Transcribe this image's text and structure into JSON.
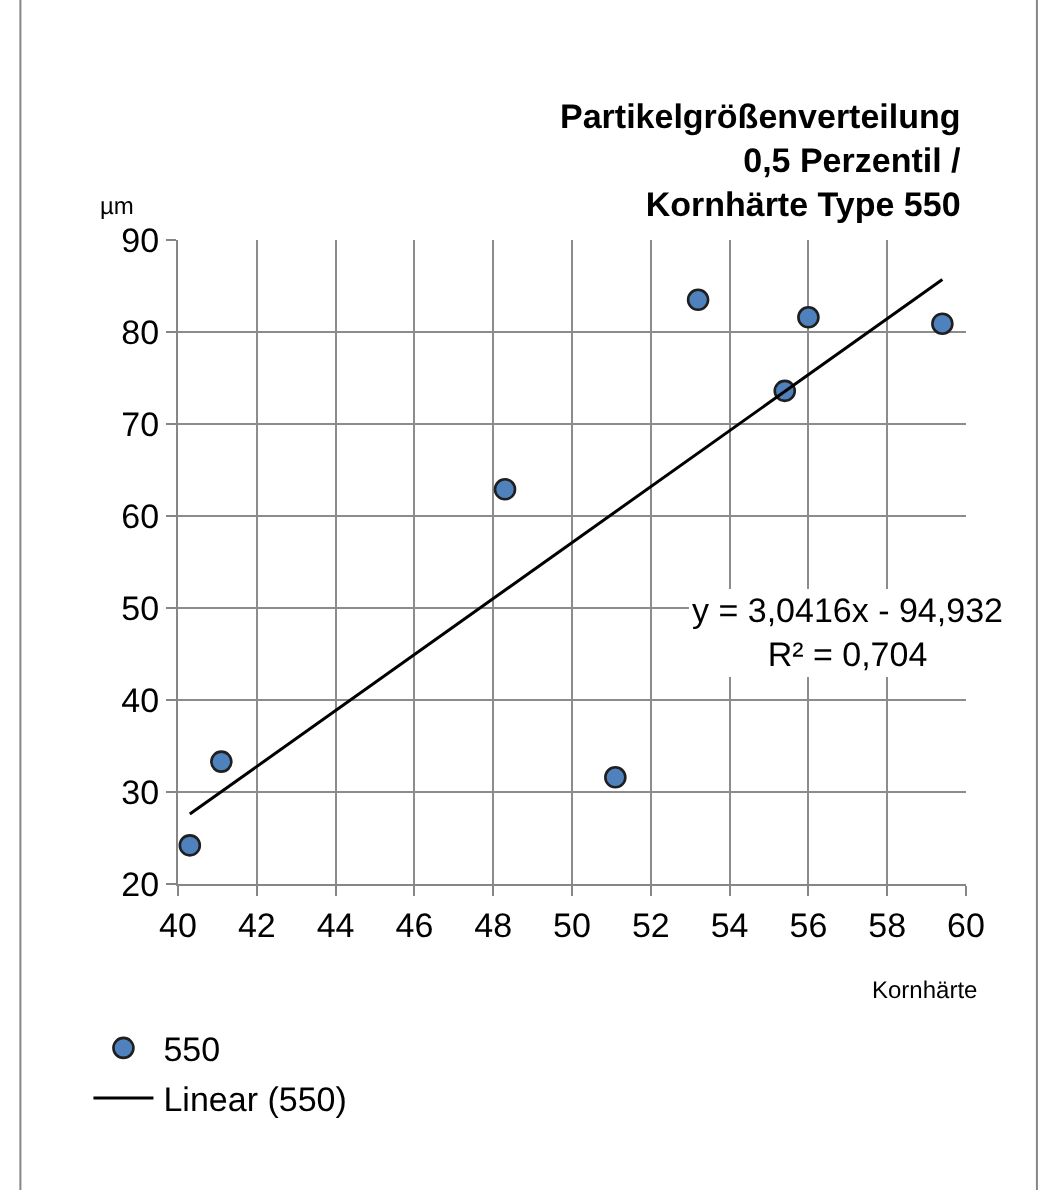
{
  "chart_data": {
    "type": "scatter",
    "title": "Partikelgrößenverteilung\n0,5 Perzentil /\nKornhärte Type 550",
    "xlabel": "Kornhärte",
    "ylabel": "µm",
    "xlim": [
      40,
      60
    ],
    "xticks": [
      40,
      42,
      44,
      46,
      48,
      50,
      52,
      54,
      56,
      58,
      60
    ],
    "ylim": [
      20,
      90
    ],
    "yticks": [
      20,
      30,
      40,
      50,
      60,
      70,
      80,
      90
    ],
    "grid": true,
    "legend": "bottom left",
    "annotations": [
      "y = 3,0416x - 94,932\nR² = 0,704"
    ],
    "series": [
      {
        "name": "550",
        "color": "#4f81bd",
        "marker": "circle",
        "x": [
          40.3,
          41.1,
          48.3,
          51.1,
          53.2,
          55.4,
          56.0,
          59.4
        ],
        "values": [
          24.2,
          33.3,
          62.9,
          31.6,
          83.5,
          73.6,
          81.6,
          80.9
        ]
      },
      {
        "name": "Linear (550)",
        "type": "line",
        "color": "#000000",
        "marker": "none",
        "x": [
          40.3,
          59.4
        ],
        "values": [
          27.6,
          85.7
        ]
      }
    ]
  }
}
